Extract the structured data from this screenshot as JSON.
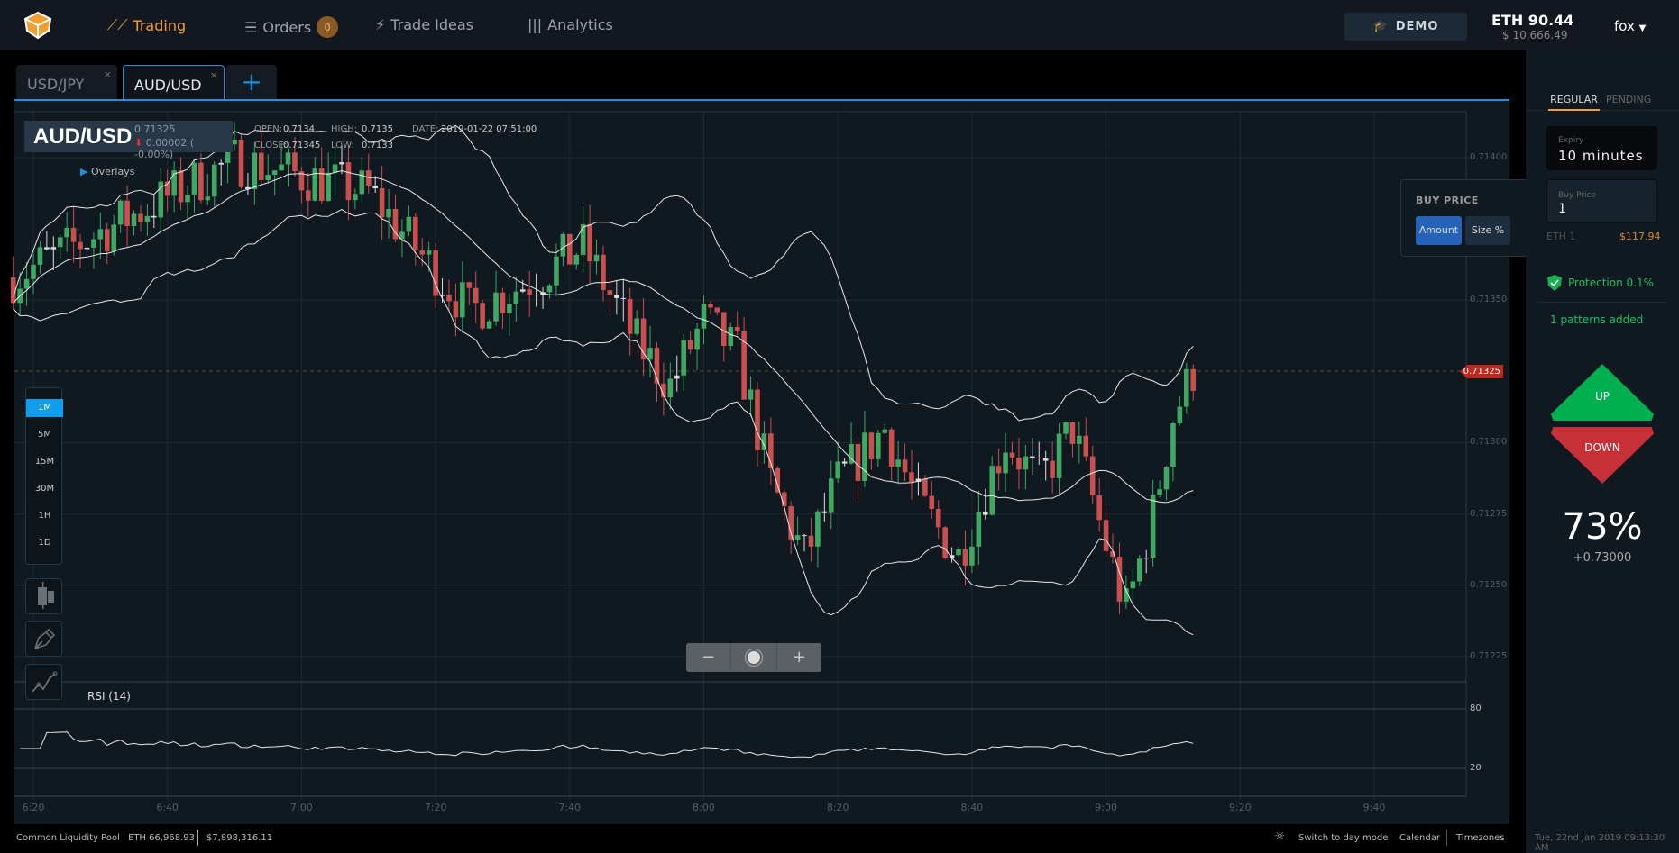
{
  "nav": {
    "trading": "Trading",
    "orders": "Orders",
    "orders_count": "0",
    "trade_ideas": "Trade Ideas",
    "analytics": "Analytics",
    "demo": "DEMO",
    "balance_eth": "ETH 90.44",
    "balance_usd": "$ 10,666.49",
    "user": "fox"
  },
  "tabs": [
    {
      "label": "USD/JPY",
      "close": "×"
    },
    {
      "label": "AUD/USD",
      "close": "×"
    },
    {
      "label": "+"
    }
  ],
  "chart_header": {
    "symbol": "AUD/USD",
    "price": "0.71325",
    "change": "0.00002 ( -0.00%)",
    "open_label": "OPEN:",
    "open": "0.7134",
    "high_label": "HIGH:",
    "high": "0.7135",
    "date_label": "DATE:",
    "date": "2019-01-22 07:51:00",
    "close_label": "CLOSE:",
    "close": "0.71345",
    "low_label": "LOW:",
    "low": "0.7133",
    "overlays": "Overlays"
  },
  "timeframes": [
    "1M",
    "5M",
    "15M",
    "30M",
    "1H",
    "1D"
  ],
  "zoom": {
    "minus": "−",
    "plus": "+"
  },
  "rsi_label": "RSI (14)",
  "buy_price_popup": {
    "title": "BUY PRICE",
    "amount": "Amount",
    "size": "Size %"
  },
  "current_price_tag": "0.71325",
  "colors": {
    "up": "#3fa862",
    "down": "#c9504f",
    "accent": "#1b8fe0",
    "orange": "#f0a030"
  },
  "right_panel": {
    "tab_regular": "REGULAR",
    "tab_pending": "PENDING",
    "expiry_label": "Expiry",
    "expiry_value": "10 minutes",
    "buy_price_label": "Buy Price",
    "buy_price_value": "1",
    "eth_amount": "ETH 1",
    "usd_amount": "$117.94",
    "protection": "Protection 0.1%",
    "patterns": "1 patterns added",
    "up": "UP",
    "down": "DOWN",
    "payout_pct": "73%",
    "payout_value": "+0.73000",
    "datetime": "Tue, 22nd Jan 2019 09:13:30 AM"
  },
  "bottom": {
    "pool": "Common Liquidity Pool",
    "pool_eth": "ETH 66,968.93",
    "pool_usd": "$7,898,316.11",
    "day_mode": "Switch to day mode",
    "calendar": "Calendar",
    "timezones": "Timezones"
  },
  "chart_data": {
    "type": "candlestick",
    "price_ticks": [
      "0.71400",
      "0.71350",
      "0.71300",
      "0.71275",
      "0.71250",
      "0.71225"
    ],
    "price_range": [
      0.71225,
      0.714
    ],
    "rsi_ticks": [
      "80",
      "20"
    ],
    "time_ticks": [
      "6:20",
      "6:40",
      "7:00",
      "7:20",
      "7:40",
      "8:00",
      "8:20",
      "8:40",
      "9:00",
      "9:20",
      "9:40"
    ],
    "interval_minutes": 1,
    "start": "6:17",
    "end": "9:13",
    "price_path": [
      [
        17,
        0.71358
      ],
      [
        35,
        0.7138
      ],
      [
        50,
        0.71399
      ],
      [
        70,
        0.71388
      ],
      [
        85,
        0.71346
      ],
      [
        95,
        0.71358
      ],
      [
        102,
        0.71369
      ],
      [
        110,
        0.71335
      ],
      [
        115,
        0.7132
      ],
      [
        120,
        0.71343
      ],
      [
        125,
        0.71331
      ],
      [
        130,
        0.71286
      ],
      [
        135,
        0.7126
      ],
      [
        140,
        0.71286
      ],
      [
        147,
        0.71305
      ],
      [
        152,
        0.71279
      ],
      [
        158,
        0.7126
      ],
      [
        165,
        0.71301
      ],
      [
        170,
        0.71286
      ],
      [
        175,
        0.71305
      ],
      [
        180,
        0.71264
      ],
      [
        183,
        0.71241
      ],
      [
        187,
        0.71275
      ],
      [
        190,
        0.71309
      ],
      [
        193,
        0.71325
      ]
    ],
    "indicators": [
      "Bollinger Bands (20,2)",
      "RSI (14)"
    ]
  }
}
